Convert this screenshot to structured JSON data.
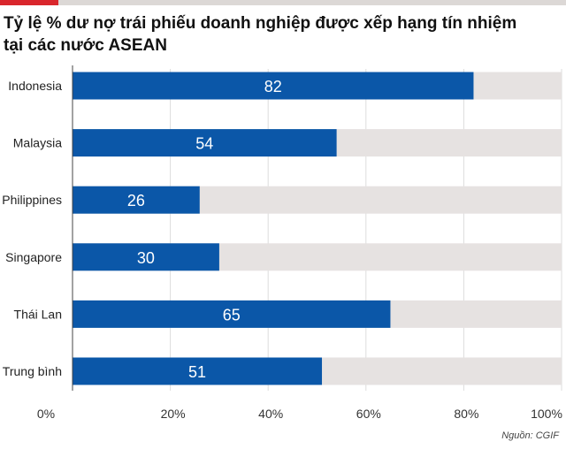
{
  "header": {
    "title_line1": "Tỷ lệ % dư nợ trái phiếu doanh nghiệp được xếp hạng tín nhiệm",
    "title_line2": "tại các nước ASEAN"
  },
  "source": "Nguồn: CGIF",
  "colors": {
    "bar": "#0b57a8",
    "track": "#e6e2e1",
    "accent": "#d9262c"
  },
  "chart_data": {
    "type": "bar",
    "orientation": "horizontal",
    "title": "Tỷ lệ % dư nợ trái phiếu doanh nghiệp được xếp hạng tín nhiệm tại các nước ASEAN",
    "categories": [
      "Indonesia",
      "Malaysia",
      "Philippines",
      "Singapore",
      "Thái Lan",
      "Trung bình"
    ],
    "values": [
      82,
      54,
      26,
      30,
      65,
      51
    ],
    "xlim": [
      0,
      100
    ],
    "ticks": [
      "0%",
      "20%",
      "40%",
      "60%",
      "80%",
      "100%"
    ],
    "grid": true
  }
}
